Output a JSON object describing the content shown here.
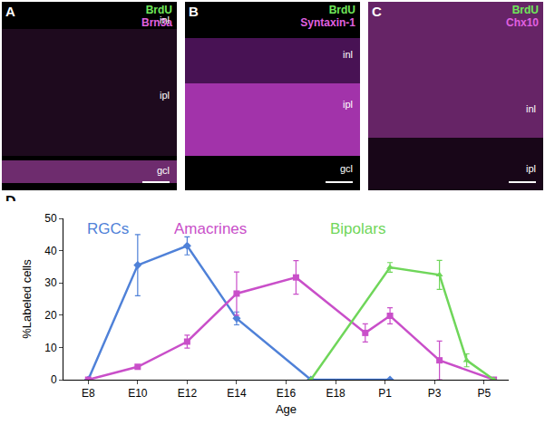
{
  "panels": [
    {
      "label": "A",
      "stains": [
        "BrdU",
        "Brn3a"
      ],
      "layers": [
        "inl",
        "ipl",
        "gcl"
      ]
    },
    {
      "label": "B",
      "stains": [
        "BrdU",
        "Syntaxin-1"
      ],
      "layers": [
        "inl",
        "ipl",
        "gcl"
      ]
    },
    {
      "label": "C",
      "stains": [
        "BrdU",
        "Chx10"
      ],
      "layers": [
        "inl",
        "ipl"
      ]
    }
  ],
  "chart_panel_label": "D",
  "chart_data": {
    "type": "line",
    "x_label": "Age",
    "y_label": "%Labeled cells",
    "xlim": [
      7,
      25
    ],
    "xticks": [
      {
        "value": 8,
        "label": "E8"
      },
      {
        "value": 10,
        "label": "E10"
      },
      {
        "value": 12,
        "label": "E12"
      },
      {
        "value": 14,
        "label": "E14"
      },
      {
        "value": 16,
        "label": "E16"
      },
      {
        "value": 18,
        "label": "E18"
      },
      {
        "value": 20,
        "label": "P1"
      },
      {
        "value": 22,
        "label": "P3"
      },
      {
        "value": 24,
        "label": "P5"
      }
    ],
    "ylim": [
      0,
      50
    ],
    "yticks": [
      0,
      10,
      20,
      30,
      40,
      50
    ],
    "grid": false,
    "series": [
      {
        "name": "RGCs",
        "color": "#4f81d8",
        "marker": "diamond",
        "x": [
          8,
          10,
          12,
          14,
          17,
          20.2
        ],
        "values": [
          0,
          35.5,
          41.5,
          19,
          0,
          0
        ],
        "errors": [
          0,
          9.5,
          2.8,
          2,
          0,
          0
        ]
      },
      {
        "name": "Amacrines",
        "color": "#c94fc9",
        "marker": "square",
        "x": [
          8,
          10,
          12,
          14,
          16.4,
          19.2,
          20.2,
          22.2,
          24.4
        ],
        "values": [
          0,
          4,
          11.8,
          26.7,
          31.7,
          14.5,
          19.8,
          6,
          0
        ],
        "errors": [
          0,
          0.5,
          2,
          6.7,
          5.2,
          2.8,
          2.5,
          6,
          0
        ]
      },
      {
        "name": "Bipolars",
        "color": "#6fd65a",
        "marker": "triangle-up",
        "x": [
          17,
          20.2,
          22.2,
          23.3,
          24.4
        ],
        "values": [
          0,
          34.8,
          32.5,
          6,
          0
        ],
        "errors": [
          0,
          1.5,
          4.5,
          2,
          0
        ]
      }
    ]
  }
}
